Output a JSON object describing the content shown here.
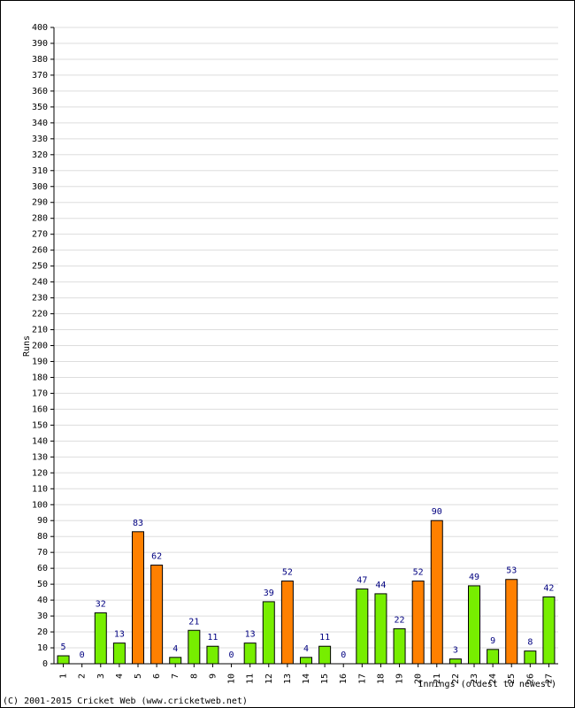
{
  "chart_data": {
    "type": "bar",
    "y_label": "Runs",
    "x_label": "Innings (oldest to newest)",
    "footer": "(C) 2001-2015 Cricket Web (www.cricketweb.net)",
    "categories": [
      "1",
      "2",
      "3",
      "4",
      "5",
      "6",
      "7",
      "8",
      "9",
      "10",
      "11",
      "12",
      "13",
      "14",
      "15",
      "16",
      "17",
      "18",
      "19",
      "20",
      "21",
      "22",
      "23",
      "24",
      "25",
      "26",
      "27"
    ],
    "values": [
      5,
      0,
      32,
      13,
      83,
      62,
      4,
      21,
      11,
      0,
      13,
      39,
      52,
      4,
      11,
      0,
      47,
      44,
      22,
      52,
      90,
      3,
      49,
      9,
      53,
      8,
      42
    ],
    "colors": [
      "#77ee00",
      "#77ee00",
      "#77ee00",
      "#77ee00",
      "#ff8000",
      "#ff8000",
      "#77ee00",
      "#77ee00",
      "#77ee00",
      "#77ee00",
      "#77ee00",
      "#77ee00",
      "#ff8000",
      "#77ee00",
      "#77ee00",
      "#77ee00",
      "#77ee00",
      "#77ee00",
      "#77ee00",
      "#ff8000",
      "#ff8000",
      "#77ee00",
      "#77ee00",
      "#77ee00",
      "#ff8000",
      "#77ee00",
      "#77ee00"
    ],
    "ylim": [
      0,
      400
    ],
    "yticks": [
      0,
      10,
      20,
      30,
      40,
      50,
      60,
      70,
      80,
      90,
      100,
      110,
      120,
      130,
      140,
      150,
      160,
      170,
      180,
      190,
      200,
      210,
      220,
      230,
      240,
      250,
      260,
      270,
      280,
      290,
      300,
      310,
      320,
      330,
      340,
      350,
      360,
      370,
      380,
      390,
      400
    ],
    "grid": true
  }
}
